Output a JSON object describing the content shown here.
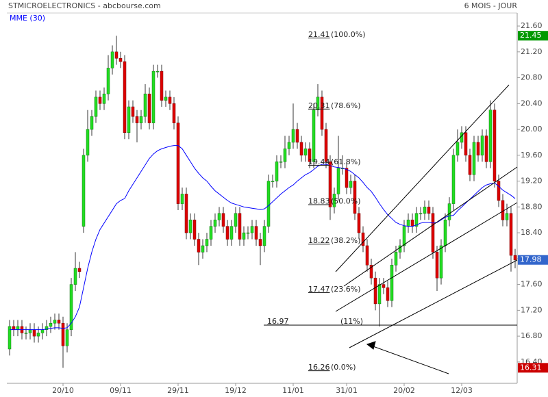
{
  "chart_data": {
    "type": "candlestick",
    "title": "STMICROELECTRONICS - abcbourse.com",
    "period": "6 MOIS - JOUR",
    "categories": [
      null,
      null,
      null,
      null,
      null,
      null,
      null,
      null,
      null,
      null,
      null,
      null,
      null,
      "20/10",
      null,
      null,
      null,
      null,
      null,
      null,
      null,
      null,
      null,
      null,
      null,
      null,
      null,
      "09/11",
      null,
      null,
      null,
      null,
      null,
      null,
      null,
      null,
      null,
      null,
      null,
      null,
      null,
      "29/11",
      null,
      null,
      null,
      null,
      null,
      null,
      null,
      null,
      null,
      null,
      null,
      null,
      null,
      "19/12",
      null,
      null,
      null,
      null,
      null,
      null,
      null,
      null,
      null,
      null,
      null,
      null,
      null,
      "11/01",
      null,
      null,
      null,
      null,
      null,
      null,
      null,
      null,
      null,
      null,
      null,
      null,
      "31/01",
      null,
      null,
      null,
      null,
      null,
      null,
      null,
      null,
      null,
      null,
      null,
      null,
      null,
      "20/02",
      null,
      null,
      null,
      null,
      null,
      null,
      null,
      null,
      null,
      null,
      null,
      null,
      null,
      "12/03",
      null,
      null,
      null,
      null,
      null,
      null,
      null,
      null,
      null,
      null,
      null,
      null,
      null
    ],
    "open": [
      16.6,
      16.95,
      16.9,
      16.95,
      16.85,
      16.85,
      16.9,
      16.8,
      16.85,
      16.9,
      16.95,
      17.0,
      17.05,
      17.0,
      16.65,
      16.9,
      17.6,
      17.85,
      18.5,
      19.6,
      20.0,
      20.2,
      20.5,
      20.4,
      20.55,
      20.95,
      21.2,
      21.1,
      21.05,
      19.95,
      20.35,
      20.2,
      20.1,
      20.2,
      20.55,
      20.1,
      20.9,
      20.9,
      20.45,
      20.5,
      20.4,
      20.1,
      18.85,
      19.0,
      18.4,
      18.6,
      18.3,
      18.1,
      18.2,
      18.3,
      18.5,
      18.6,
      18.7,
      18.5,
      18.3,
      18.5,
      18.7,
      18.3,
      18.4,
      18.4,
      18.5,
      18.3,
      18.2,
      18.5,
      19.2,
      19.2,
      19.5,
      19.5,
      19.7,
      19.8,
      20.0,
      19.8,
      19.6,
      19.7,
      19.5,
      20.3,
      20.5,
      20.0,
      19.5,
      18.8,
      19.0,
      19.4,
      19.4,
      19.1,
      19.2,
      18.7,
      18.4,
      18.2,
      17.9,
      17.7,
      17.3,
      17.6,
      17.55,
      17.35,
      17.9,
      18.1,
      18.2,
      18.5,
      18.6,
      18.5,
      18.7,
      18.7,
      18.8,
      18.7,
      18.1,
      17.7,
      18.2,
      18.6,
      18.85,
      19.6,
      19.8,
      19.95,
      19.6,
      19.3,
      19.8,
      19.6,
      19.9,
      19.5,
      20.3,
      19.2,
      18.9,
      18.6,
      18.7,
      18.05
    ],
    "high": [
      17.05,
      17.05,
      17.05,
      17.05,
      16.95,
      17.0,
      17.0,
      16.95,
      17.0,
      17.05,
      17.1,
      17.15,
      17.15,
      17.1,
      17.0,
      17.7,
      18.1,
      17.95,
      19.7,
      20.3,
      20.3,
      20.6,
      20.6,
      20.65,
      21.15,
      21.3,
      21.45,
      21.2,
      21.15,
      20.45,
      20.45,
      20.3,
      20.3,
      20.7,
      20.65,
      21.0,
      21.0,
      21.0,
      20.6,
      20.6,
      20.5,
      20.2,
      19.1,
      19.1,
      18.7,
      18.7,
      18.4,
      18.3,
      18.4,
      18.6,
      18.7,
      18.8,
      18.8,
      18.6,
      18.6,
      18.8,
      18.8,
      18.5,
      18.5,
      18.6,
      18.6,
      18.4,
      18.6,
      19.3,
      19.3,
      19.6,
      19.6,
      19.9,
      19.9,
      20.4,
      20.1,
      19.9,
      19.8,
      19.8,
      20.4,
      20.7,
      20.6,
      20.1,
      19.6,
      19.1,
      19.9,
      19.6,
      19.5,
      19.3,
      19.3,
      18.8,
      18.5,
      18.3,
      18.0,
      17.8,
      17.7,
      17.7,
      17.65,
      18.0,
      18.2,
      18.3,
      18.6,
      18.7,
      18.7,
      18.8,
      18.8,
      18.9,
      18.9,
      18.8,
      18.2,
      18.3,
      18.7,
      18.95,
      19.7,
      20.0,
      20.05,
      20.05,
      19.7,
      19.9,
      19.9,
      20.0,
      20.0,
      20.45,
      20.4,
      19.3,
      19.0,
      18.85,
      18.8,
      18.15
    ],
    "low": [
      16.5,
      16.8,
      16.8,
      16.75,
      16.75,
      16.75,
      16.7,
      16.7,
      16.75,
      16.8,
      16.85,
      16.9,
      16.9,
      16.31,
      16.55,
      16.8,
      17.5,
      17.7,
      18.4,
      19.5,
      19.9,
      20.1,
      20.3,
      20.3,
      20.45,
      20.85,
      21.0,
      20.95,
      19.85,
      19.85,
      20.1,
      19.8,
      20.0,
      20.1,
      20.0,
      20.0,
      20.8,
      20.35,
      20.35,
      20.3,
      20.0,
      18.75,
      18.75,
      18.3,
      18.3,
      18.2,
      17.9,
      18.0,
      18.1,
      18.2,
      18.4,
      18.5,
      18.4,
      18.2,
      18.2,
      18.4,
      18.2,
      18.2,
      18.3,
      18.3,
      18.2,
      17.9,
      18.1,
      18.4,
      19.1,
      19.1,
      19.4,
      19.4,
      19.6,
      19.7,
      19.7,
      19.5,
      19.5,
      19.4,
      19.4,
      20.2,
      19.9,
      19.4,
      18.6,
      18.7,
      18.9,
      19.3,
      19.0,
      19.0,
      18.6,
      18.3,
      18.1,
      17.8,
      17.6,
      17.2,
      16.95,
      17.45,
      17.25,
      17.25,
      17.8,
      18.0,
      18.1,
      18.4,
      18.4,
      18.4,
      18.6,
      18.6,
      18.6,
      18.0,
      17.5,
      17.6,
      18.1,
      18.5,
      18.75,
      19.5,
      19.7,
      19.5,
      19.2,
      19.2,
      19.5,
      19.5,
      19.4,
      19.4,
      19.1,
      18.8,
      18.5,
      18.5,
      17.8,
      17.85
    ],
    "close": [
      16.95,
      16.9,
      16.95,
      16.85,
      16.85,
      16.9,
      16.8,
      16.85,
      16.9,
      16.95,
      17.0,
      17.05,
      17.0,
      16.65,
      16.9,
      17.6,
      17.85,
      17.8,
      19.6,
      20.0,
      20.2,
      20.5,
      20.4,
      20.55,
      20.95,
      21.2,
      21.1,
      21.05,
      19.95,
      20.35,
      20.2,
      20.1,
      20.2,
      20.55,
      20.1,
      20.9,
      20.9,
      20.45,
      20.5,
      20.4,
      20.1,
      18.85,
      19.0,
      18.4,
      18.6,
      18.3,
      18.1,
      18.2,
      18.3,
      18.5,
      18.6,
      18.7,
      18.5,
      18.3,
      18.5,
      18.7,
      18.3,
      18.4,
      18.4,
      18.5,
      18.3,
      18.2,
      18.5,
      19.2,
      19.2,
      19.5,
      19.5,
      19.7,
      19.8,
      20.0,
      19.8,
      19.6,
      19.7,
      19.5,
      20.3,
      20.5,
      20.0,
      19.5,
      18.8,
      19.0,
      19.4,
      19.4,
      19.1,
      19.2,
      18.7,
      18.4,
      18.2,
      17.9,
      17.7,
      17.3,
      17.6,
      17.55,
      17.35,
      17.9,
      18.1,
      18.2,
      18.5,
      18.6,
      18.5,
      18.7,
      18.7,
      18.8,
      18.7,
      18.1,
      17.7,
      18.2,
      18.6,
      18.85,
      19.6,
      19.8,
      19.95,
      19.6,
      19.3,
      19.8,
      19.6,
      19.9,
      19.5,
      20.3,
      19.2,
      18.9,
      18.6,
      18.7,
      18.05,
      17.98
    ],
    "up_color": "#22dd22",
    "down_color": "#dd0000",
    "mme": {
      "name": "MME (30)",
      "color": "#0000ff",
      "values": [
        16.9,
        16.9,
        16.9,
        16.9,
        16.9,
        16.9,
        16.9,
        16.9,
        16.9,
        16.91,
        16.92,
        16.93,
        16.93,
        16.92,
        16.93,
        17.0,
        17.1,
        17.25,
        17.55,
        17.85,
        18.1,
        18.3,
        18.45,
        18.55,
        18.65,
        18.75,
        18.85,
        18.9,
        18.93,
        19.05,
        19.15,
        19.25,
        19.35,
        19.45,
        19.55,
        19.62,
        19.67,
        19.7,
        19.72,
        19.74,
        19.75,
        19.75,
        19.7,
        19.6,
        19.5,
        19.4,
        19.32,
        19.25,
        19.2,
        19.12,
        19.05,
        19.0,
        18.95,
        18.9,
        18.86,
        18.84,
        18.82,
        18.8,
        18.79,
        18.78,
        18.77,
        18.76,
        18.77,
        18.82,
        18.88,
        18.94,
        19.0,
        19.05,
        19.1,
        19.14,
        19.2,
        19.25,
        19.3,
        19.33,
        19.38,
        19.43,
        19.46,
        19.46,
        19.44,
        19.42,
        19.41,
        19.4,
        19.38,
        19.35,
        19.3,
        19.25,
        19.18,
        19.1,
        19.04,
        18.95,
        18.85,
        18.76,
        18.68,
        18.62,
        18.56,
        18.53,
        18.51,
        18.5,
        18.5,
        18.52,
        18.55,
        18.56,
        18.56,
        18.55,
        18.56,
        18.6,
        18.64,
        18.66,
        18.67,
        18.74,
        18.8,
        18.86,
        18.92,
        18.98,
        19.04,
        19.1,
        19.14,
        19.16,
        19.17,
        19.12,
        19.06,
        19.02,
        18.98,
        18.93
      ]
    },
    "ylim": [
      16.07,
      21.77
    ],
    "yticks": [
      {
        "value": 21.6,
        "label": "21.60"
      },
      {
        "value": 21.2,
        "label": "21.20"
      },
      {
        "value": 20.8,
        "label": "20.80"
      },
      {
        "value": 20.4,
        "label": "20.40"
      },
      {
        "value": 20.0,
        "label": "20.00"
      },
      {
        "value": 19.6,
        "label": "19.60"
      },
      {
        "value": 19.2,
        "label": "19.20"
      },
      {
        "value": 18.8,
        "label": "18.80"
      },
      {
        "value": 18.4,
        "label": "18.40"
      },
      {
        "value": 18.0,
        "label": "18.00"
      },
      {
        "value": 17.6,
        "label": "17.60"
      },
      {
        "value": 17.2,
        "label": "17.20"
      },
      {
        "value": 16.8,
        "label": "16.80"
      },
      {
        "value": 16.4,
        "label": "16.40"
      }
    ],
    "markers": [
      {
        "value": 21.45,
        "label": "21.45",
        "color": "#009900"
      },
      {
        "value": 17.98,
        "label": "17.98",
        "color": "#3366cc"
      },
      {
        "value": 16.31,
        "label": "16.31",
        "color": "#cc0000"
      }
    ],
    "fibonacci": [
      {
        "price": 21.41,
        "pct": "(100.0%)"
      },
      {
        "price": 20.31,
        "pct": "(78.6%)"
      },
      {
        "price": 19.44,
        "pct": "(61.8%)"
      },
      {
        "price": 18.83,
        "pct": "(50.0%)"
      },
      {
        "price": 18.22,
        "pct": "(38.2%)"
      },
      {
        "price": 17.47,
        "pct": "(23.6%)"
      },
      {
        "price": 16.97,
        "pct": "(11%)",
        "line": true
      },
      {
        "price": 16.26,
        "pct": "(0.0%)"
      }
    ]
  }
}
